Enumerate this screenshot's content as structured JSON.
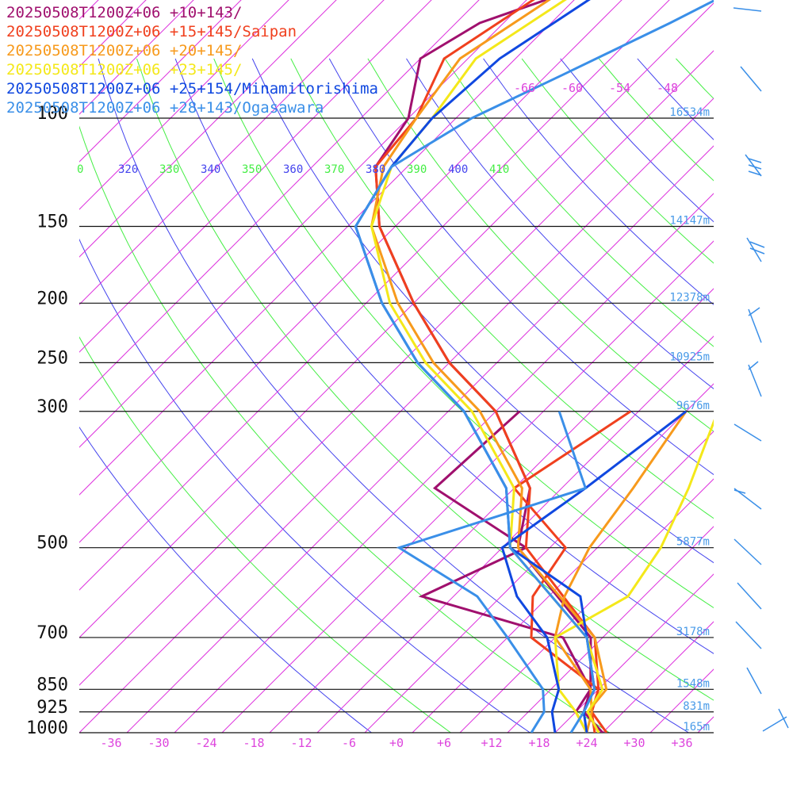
{
  "colors": {
    "isotherm": "#dd33dd",
    "isobar": "#111111",
    "theta_a": "#4444ee",
    "theta_b": "#44ee44",
    "height_label": "#4a9be8",
    "wind": "#3a8fe8"
  },
  "legend": [
    {
      "label": "20250508T1200Z+06 +10+143/",
      "color": "#a0106e"
    },
    {
      "label": "20250508T1200Z+06 +15+145/Saipan",
      "color": "#f0401e"
    },
    {
      "label": "20250508T1200Z+06 +20+145/",
      "color": "#f79a1c"
    },
    {
      "label": "20250508T1200Z+06 +23+145/",
      "color": "#f4e81a"
    },
    {
      "label": "20250508T1200Z+06 +25+154/Minamitorishima",
      "color": "#1048e0"
    },
    {
      "label": "20250508T1200Z+06 +28+143/Ogasawara",
      "color": "#3a8fe8"
    }
  ],
  "chart_data": {
    "type": "line",
    "title": "",
    "xlabel": "",
    "ylabel": "",
    "pressure_levels": [
      {
        "p": 100,
        "label": "100",
        "height": "16534m"
      },
      {
        "p": 150,
        "label": "150",
        "height": "14147m"
      },
      {
        "p": 200,
        "label": "200",
        "height": "12378m"
      },
      {
        "p": 250,
        "label": "250",
        "height": "10925m"
      },
      {
        "p": 300,
        "label": "300",
        "height": "9676m"
      },
      {
        "p": 500,
        "label": "500",
        "height": "5877m"
      },
      {
        "p": 700,
        "label": "700",
        "height": "3178m"
      },
      {
        "p": 850,
        "label": "850",
        "height": "1548m"
      },
      {
        "p": 925,
        "label": "925",
        "height": "831m"
      },
      {
        "p": 1000,
        "label": "1000",
        "height": "165m"
      }
    ],
    "x_tick_labels": [
      "-36",
      "-30",
      "-24",
      "-18",
      "-12",
      "-6",
      "+0",
      "+6",
      "+12",
      "+18",
      "+24",
      "+30",
      "+36"
    ],
    "x_ticks": [
      -36,
      -30,
      -24,
      -18,
      -12,
      -6,
      0,
      6,
      12,
      18,
      24,
      30,
      36
    ],
    "dry_bulb_labels": [
      "-66",
      "-60",
      "-54",
      "-48"
    ],
    "theta_labels": [
      "0",
      "320",
      "330",
      "340",
      "350",
      "360",
      "370",
      "380",
      "390",
      "400",
      "410"
    ],
    "series": [
      {
        "name": "20250508T1200Z+06 +10+143/",
        "color": "#a0106e",
        "temperature": [
          [
            1000,
            26
          ],
          [
            925,
            21
          ],
          [
            850,
            19
          ],
          [
            700,
            12.5
          ],
          [
            500,
            -8
          ],
          [
            400,
            -14
          ],
          [
            300,
            -28
          ],
          [
            250,
            -40
          ],
          [
            200,
            -52
          ],
          [
            150,
            -66
          ],
          [
            120,
            -74
          ],
          [
            100,
            -76
          ],
          [
            80,
            -82
          ],
          [
            70,
            -79
          ],
          [
            50,
            -58
          ]
        ],
        "dewpoint": [
          [
            1000,
            24
          ],
          [
            925,
            20
          ],
          [
            850,
            19
          ],
          [
            700,
            9
          ],
          [
            600,
            -14
          ],
          [
            500,
            -7
          ],
          [
            400,
            -26
          ],
          [
            300,
            -25
          ]
        ]
      },
      {
        "name": "20250508T1200Z+06 +15+145/Saipan",
        "color": "#f0401e",
        "temperature": [
          [
            1000,
            26.5
          ],
          [
            925,
            22
          ],
          [
            850,
            20
          ],
          [
            700,
            13
          ],
          [
            500,
            -7
          ],
          [
            400,
            -14
          ],
          [
            300,
            -28
          ],
          [
            250,
            -40
          ],
          [
            200,
            -52
          ],
          [
            150,
            -66
          ],
          [
            120,
            -74
          ],
          [
            100,
            -75
          ],
          [
            80,
            -79
          ],
          [
            60,
            -74
          ],
          [
            50,
            -58
          ]
        ],
        "dewpoint": [
          [
            1000,
            25
          ],
          [
            925,
            22
          ],
          [
            850,
            20
          ],
          [
            700,
            5
          ],
          [
            600,
            0
          ],
          [
            500,
            -2
          ],
          [
            400,
            -16
          ],
          [
            300,
            -11
          ]
        ]
      },
      {
        "name": "20250508T1200Z+06 +20+145/",
        "color": "#f79a1c",
        "temperature": [
          [
            1000,
            25.5
          ],
          [
            925,
            21.5
          ],
          [
            850,
            21
          ],
          [
            700,
            13
          ],
          [
            500,
            -8
          ],
          [
            400,
            -15
          ],
          [
            300,
            -30
          ],
          [
            250,
            -42
          ],
          [
            200,
            -54
          ],
          [
            150,
            -67
          ],
          [
            120,
            -73
          ],
          [
            100,
            -75
          ],
          [
            80,
            -77
          ],
          [
            60,
            -72
          ],
          [
            50,
            -58
          ]
        ],
        "dewpoint": [
          [
            1000,
            24
          ],
          [
            925,
            22
          ],
          [
            850,
            19
          ],
          [
            700,
            8
          ],
          [
            600,
            4
          ],
          [
            500,
            1
          ],
          [
            400,
            -1
          ],
          [
            300,
            -4
          ]
        ]
      },
      {
        "name": "20250508T1200Z+06 +23+145/",
        "color": "#f4e81a",
        "temperature": [
          [
            1000,
            25.5
          ],
          [
            925,
            21.5
          ],
          [
            850,
            20.5
          ],
          [
            700,
            12
          ],
          [
            500,
            -9
          ],
          [
            400,
            -16
          ],
          [
            300,
            -31
          ],
          [
            250,
            -43
          ],
          [
            200,
            -55
          ],
          [
            150,
            -67
          ],
          [
            120,
            -72
          ],
          [
            100,
            -73
          ],
          [
            80,
            -75
          ],
          [
            60,
            -70
          ],
          [
            50,
            -58
          ]
        ],
        "dewpoint": [
          [
            1000,
            24
          ],
          [
            925,
            20
          ],
          [
            850,
            15
          ],
          [
            700,
            8
          ],
          [
            600,
            12
          ],
          [
            500,
            10
          ],
          [
            400,
            6
          ],
          [
            300,
            0
          ]
        ]
      },
      {
        "name": "20250508T1200Z+06 +25+154/Minamitorishima",
        "color": "#1048e0",
        "temperature": [
          [
            1000,
            24
          ],
          [
            925,
            21
          ],
          [
            850,
            19.5
          ],
          [
            700,
            12
          ],
          [
            600,
            6
          ],
          [
            500,
            -9
          ],
          [
            400,
            -17
          ],
          [
            300,
            -32
          ],
          [
            250,
            -44
          ],
          [
            200,
            -56
          ],
          [
            150,
            -69
          ],
          [
            120,
            -72
          ],
          [
            100,
            -73
          ],
          [
            80,
            -72
          ],
          [
            60,
            -67
          ],
          [
            50,
            -56
          ]
        ],
        "dewpoint": [
          [
            1000,
            20
          ],
          [
            925,
            17
          ],
          [
            850,
            15
          ],
          [
            700,
            7
          ],
          [
            600,
            -2
          ],
          [
            500,
            -10
          ],
          [
            400,
            -7
          ],
          [
            300,
            -4
          ]
        ]
      },
      {
        "name": "20250508T1200Z+06 +28+143/Ogasawara",
        "color": "#3a8fe8",
        "temperature": [
          [
            1000,
            22
          ],
          [
            925,
            21
          ],
          [
            850,
            19.5
          ],
          [
            700,
            12
          ],
          [
            500,
            -9
          ],
          [
            400,
            -17
          ],
          [
            300,
            -32
          ],
          [
            250,
            -44
          ],
          [
            200,
            -56
          ],
          [
            150,
            -69
          ],
          [
            120,
            -72
          ],
          [
            100,
            -68
          ],
          [
            85,
            -62
          ],
          [
            70,
            -55
          ],
          [
            60,
            -50
          ],
          [
            50,
            -45
          ]
        ],
        "dewpoint": [
          [
            1000,
            17
          ],
          [
            925,
            16
          ],
          [
            850,
            13
          ],
          [
            700,
            2
          ],
          [
            600,
            -7
          ],
          [
            500,
            -23
          ],
          [
            400,
            -7
          ],
          [
            300,
            -20
          ]
        ]
      }
    ]
  }
}
